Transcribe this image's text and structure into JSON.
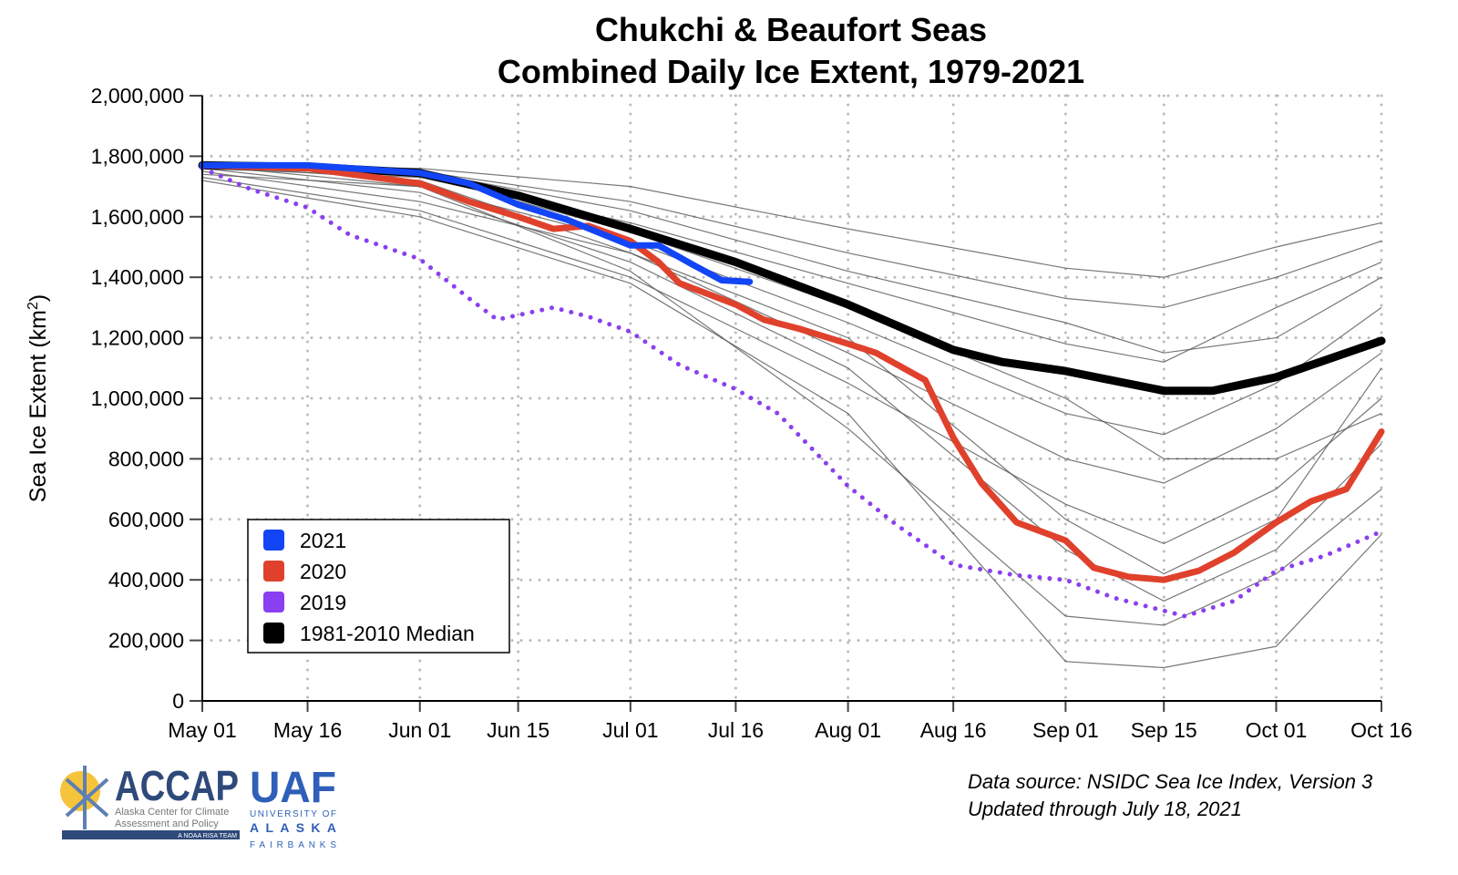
{
  "chart_data": {
    "type": "line",
    "title": [
      "Chukchi & Beaufort Seas",
      "Combined Daily Ice Extent, 1979-2021"
    ],
    "ylabel": "Sea Ice Extent (km",
    "ylabel_sup": "2",
    "ylabel_end": ")",
    "ylim": [
      0,
      2000000
    ],
    "xlim": [
      "05-01",
      "10-16"
    ],
    "yticks": [
      0,
      200000,
      400000,
      600000,
      800000,
      1000000,
      1200000,
      1400000,
      1600000,
      1800000,
      2000000
    ],
    "ytick_labels": [
      "0",
      "200,000",
      "400,000",
      "600,000",
      "800,000",
      "1,000,000",
      "1,200,000",
      "1,400,000",
      "1,600,000",
      "1,800,000",
      "2,000,000"
    ],
    "xticks": [
      "05-01",
      "05-16",
      "06-01",
      "06-15",
      "07-01",
      "07-16",
      "08-01",
      "08-16",
      "09-01",
      "09-15",
      "10-01",
      "10-16"
    ],
    "xtick_labels": [
      "May 01",
      "May 16",
      "Jun 01",
      "Jun 15",
      "Jul 01",
      "Jul 16",
      "Aug 01",
      "Aug 16",
      "Sep 01",
      "Sep 15",
      "Oct 01",
      "Oct 16"
    ],
    "grid": true,
    "legend_placement": "lower-left",
    "series": [
      {
        "name": "2021",
        "color": "#1245f5",
        "style": "solid",
        "x": [
          "05-01",
          "05-16",
          "06-01",
          "06-08",
          "06-15",
          "06-22",
          "07-01",
          "07-05",
          "07-10",
          "07-14",
          "07-18"
        ],
        "y": [
          1770000,
          1770000,
          1745000,
          1710000,
          1640000,
          1590000,
          1505000,
          1505000,
          1440000,
          1390000,
          1385000
        ]
      },
      {
        "name": "2020",
        "color": "#e0412c",
        "style": "solid",
        "x": [
          "05-01",
          "05-16",
          "06-01",
          "06-08",
          "06-15",
          "06-20",
          "06-25",
          "07-01",
          "07-05",
          "07-08",
          "07-16",
          "07-20",
          "07-25",
          "08-01",
          "08-05",
          "08-12",
          "08-16",
          "08-20",
          "08-25",
          "09-01",
          "09-05",
          "09-10",
          "09-15",
          "09-20",
          "09-25",
          "10-01",
          "10-06",
          "10-11",
          "10-16"
        ],
        "y": [
          1770000,
          1760000,
          1710000,
          1650000,
          1600000,
          1560000,
          1570000,
          1520000,
          1450000,
          1380000,
          1310000,
          1260000,
          1230000,
          1180000,
          1150000,
          1060000,
          870000,
          720000,
          590000,
          530000,
          440000,
          410000,
          400000,
          430000,
          490000,
          590000,
          660000,
          700000,
          890000
        ]
      },
      {
        "name": "2019",
        "color": "#8a3ff0",
        "style": "dotted",
        "x": [
          "05-01",
          "05-08",
          "05-16",
          "05-22",
          "06-01",
          "06-08",
          "06-12",
          "06-20",
          "06-25",
          "07-01",
          "07-08",
          "07-16",
          "07-22",
          "08-01",
          "08-08",
          "08-16",
          "08-25",
          "09-01",
          "09-08",
          "09-18",
          "09-25",
          "10-01",
          "10-08",
          "10-16"
        ],
        "y": [
          1760000,
          1690000,
          1630000,
          1540000,
          1460000,
          1330000,
          1260000,
          1300000,
          1270000,
          1220000,
          1110000,
          1030000,
          950000,
          710000,
          580000,
          450000,
          415000,
          400000,
          340000,
          280000,
          330000,
          430000,
          480000,
          560000
        ]
      },
      {
        "name": "1981-2010 Median",
        "color": "#000000",
        "style": "solid",
        "x": [
          "05-01",
          "05-16",
          "06-01",
          "06-15",
          "07-01",
          "07-16",
          "08-01",
          "08-16",
          "08-23",
          "09-01",
          "09-15",
          "09-22",
          "10-01",
          "10-16"
        ],
        "y": [
          1770000,
          1765000,
          1745000,
          1670000,
          1560000,
          1450000,
          1310000,
          1160000,
          1120000,
          1090000,
          1025000,
          1025000,
          1070000,
          1190000
        ]
      }
    ],
    "other_years_color": "#555555",
    "other_years": [
      {
        "x": [
          "05-01",
          "06-01",
          "07-01",
          "08-01",
          "09-01",
          "09-15",
          "10-01",
          "10-16"
        ],
        "y": [
          1770000,
          1760000,
          1700000,
          1560000,
          1430000,
          1400000,
          1500000,
          1580000
        ]
      },
      {
        "x": [
          "05-01",
          "06-01",
          "07-01",
          "08-01",
          "09-01",
          "09-15",
          "10-01",
          "10-16"
        ],
        "y": [
          1770000,
          1750000,
          1650000,
          1480000,
          1330000,
          1300000,
          1400000,
          1520000
        ]
      },
      {
        "x": [
          "05-01",
          "06-01",
          "07-01",
          "08-01",
          "09-01",
          "09-15",
          "10-01",
          "10-16"
        ],
        "y": [
          1760000,
          1730000,
          1580000,
          1380000,
          1180000,
          1120000,
          1300000,
          1450000
        ]
      },
      {
        "x": [
          "05-01",
          "06-01",
          "07-01",
          "08-01",
          "09-01",
          "09-15",
          "10-01",
          "10-16"
        ],
        "y": [
          1740000,
          1700000,
          1520000,
          1250000,
          950000,
          880000,
          1050000,
          1300000
        ]
      },
      {
        "x": [
          "05-01",
          "06-01",
          "07-01",
          "08-01",
          "09-01",
          "09-15",
          "10-01",
          "10-16"
        ],
        "y": [
          1770000,
          1720000,
          1480000,
          1150000,
          800000,
          720000,
          900000,
          1150000
        ]
      },
      {
        "x": [
          "05-01",
          "06-01",
          "07-01",
          "08-01",
          "09-01",
          "09-15",
          "10-01",
          "10-16"
        ],
        "y": [
          1730000,
          1620000,
          1400000,
          1050000,
          650000,
          520000,
          700000,
          1000000
        ]
      },
      {
        "x": [
          "05-01",
          "06-01",
          "07-01",
          "08-01",
          "09-01",
          "09-15",
          "10-01",
          "10-16"
        ],
        "y": [
          1760000,
          1680000,
          1450000,
          1100000,
          500000,
          330000,
          500000,
          850000
        ]
      },
      {
        "x": [
          "05-01",
          "06-01",
          "07-01",
          "08-01",
          "09-01",
          "09-15",
          "10-01",
          "10-16"
        ],
        "y": [
          1770000,
          1700000,
          1420000,
          900000,
          280000,
          250000,
          420000,
          700000
        ]
      },
      {
        "x": [
          "05-01",
          "06-01",
          "07-01",
          "08-01",
          "09-01",
          "09-15",
          "10-01",
          "10-16"
        ],
        "y": [
          1720000,
          1600000,
          1380000,
          950000,
          130000,
          110000,
          180000,
          550000
        ]
      },
      {
        "x": [
          "05-01",
          "06-01",
          "07-01",
          "08-01",
          "09-01",
          "09-15",
          "10-01",
          "10-16"
        ],
        "y": [
          1770000,
          1740000,
          1550000,
          1300000,
          1000000,
          800000,
          800000,
          950000
        ]
      },
      {
        "x": [
          "05-01",
          "06-01",
          "07-01",
          "08-01",
          "09-01",
          "09-15",
          "10-01",
          "10-16"
        ],
        "y": [
          1770000,
          1750000,
          1620000,
          1420000,
          1250000,
          1150000,
          1200000,
          1400000
        ]
      },
      {
        "x": [
          "05-01",
          "06-01",
          "07-01",
          "08-01",
          "09-01",
          "09-15",
          "10-01",
          "10-16"
        ],
        "y": [
          1750000,
          1650000,
          1480000,
          1200000,
          600000,
          420000,
          600000,
          1100000
        ]
      }
    ]
  },
  "source": {
    "line1": "Data source: NSIDC Sea Ice Index, Version 3",
    "line2": "Updated through July 18, 2021"
  },
  "logo": {
    "accap": "ACCAP",
    "accap_sub1": "Alaska Center for Climate",
    "accap_sub2": "Assessment and Policy",
    "accap_band": "A NOAA RISA TEAM",
    "uaf": "UAF",
    "uaf_sub1": "UNIVERSITY OF",
    "uaf_sub2": "ALASKA",
    "uaf_sub3": "FAIRBANKS"
  }
}
